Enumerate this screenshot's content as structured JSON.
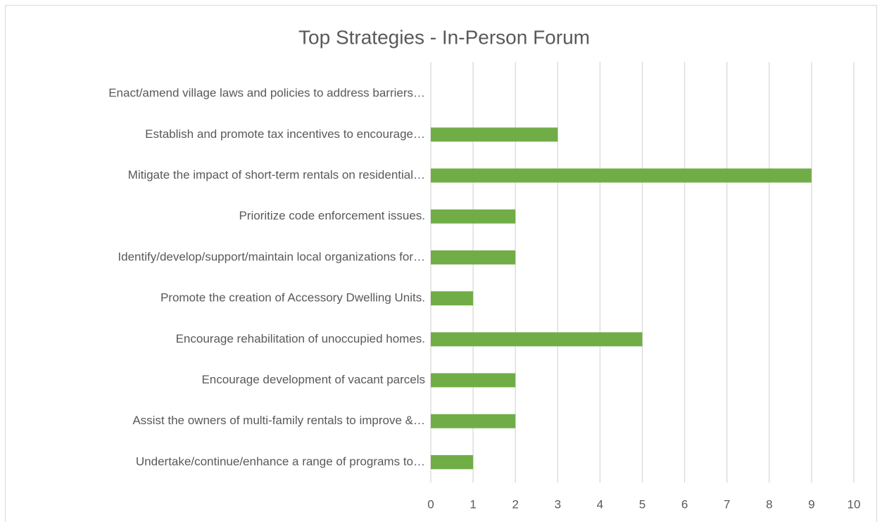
{
  "chart_data": {
    "type": "bar",
    "orientation": "horizontal",
    "title": "Top Strategies - In-Person Forum",
    "categories": [
      "Enact/amend village laws and policies to address barriers…",
      "Establish and promote tax incentives to encourage…",
      "Mitigate the impact of short-term rentals on residential…",
      "Prioritize code enforcement issues.",
      "Identify/develop/support/maintain local organizations for…",
      "Promote the creation of Accessory Dwelling Units.",
      "Encourage rehabilitation of unoccupied homes.",
      "Encourage development of vacant parcels",
      "Assist the owners of multi-family rentals to improve &…",
      "Undertake/continue/enhance a range of programs to…"
    ],
    "values": [
      0,
      3,
      9,
      2,
      2,
      1,
      5,
      2,
      2,
      1
    ],
    "color": "#70ad47",
    "xlim": [
      0,
      10
    ],
    "xticks": [
      0,
      1,
      2,
      3,
      4,
      5,
      6,
      7,
      8,
      9,
      10
    ],
    "grid": true
  }
}
